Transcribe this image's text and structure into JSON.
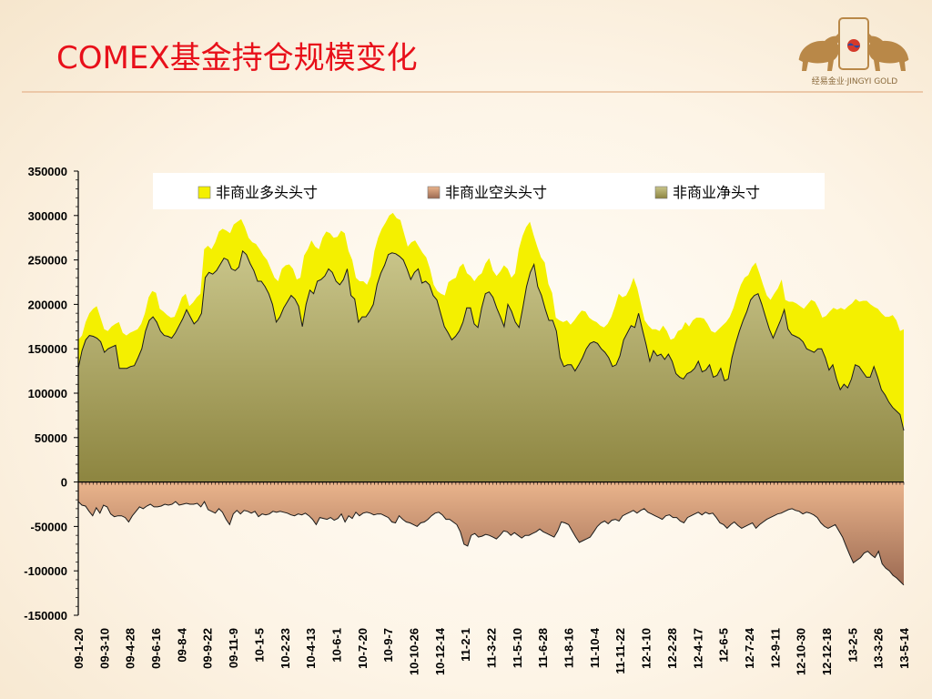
{
  "page": {
    "title": "COMEX基金持仓规模变化",
    "logo_text": "经易金业·JINGYI GOLD",
    "logo_seal": "經易"
  },
  "colors": {
    "title": "#e8101a",
    "long_fill": "#f4f000",
    "net_fill_top": "#bfbb7a",
    "net_fill_bottom": "#8d8540",
    "short_fill_top": "#e6ad84",
    "short_fill_bottom": "#a27058",
    "accent_rule": "#ecc8a8"
  },
  "chart_data": {
    "type": "area",
    "title": "",
    "xlabel": "",
    "ylabel": "",
    "ylim": [
      -150000,
      350000
    ],
    "yticks": [
      350000,
      300000,
      250000,
      200000,
      150000,
      100000,
      50000,
      0,
      -50000,
      -100000,
      -150000
    ],
    "ytick_labels": [
      "350000",
      "300000",
      "250000",
      "200000",
      "150000",
      "100000",
      "50000",
      "0",
      "-50000",
      "-100000",
      "-150000"
    ],
    "xtick_labels": [
      "09-1-20",
      "09-3-10",
      "09-4-28",
      "09-6-16",
      "09-8-4",
      "09-9-22",
      "09-11-9",
      "10-1-5",
      "10-2-23",
      "10-4-13",
      "10-6-1",
      "10-7-20",
      "10-9-7",
      "10-10-26",
      "10-12-14",
      "11-2-1",
      "11-3-22",
      "11-5-10",
      "11-6-28",
      "11-8-16",
      "11-10-4",
      "11-11-22",
      "12-1-10",
      "12-2-28",
      "12-4-17",
      "12-6-5",
      "12-7-24",
      "12-9-11",
      "12-10-30",
      "12-12-18",
      "13-2-5",
      "13-3-26",
      "13-5-14"
    ],
    "x_period": "weekly, 2009-01-20 to 2013-06-04",
    "grid": false,
    "legend_position": "top",
    "series": [
      {
        "name": "非商业多头头寸",
        "color": "#f4f000",
        "values": [
          160000,
          165000,
          180000,
          190000,
          195000,
          198000,
          185000,
          172000,
          170000,
          175000,
          178000,
          180000,
          168000,
          165000,
          168000,
          170000,
          172000,
          178000,
          190000,
          208000,
          215000,
          213000,
          195000,
          192000,
          188000,
          185000,
          186000,
          196000,
          208000,
          212000,
          198000,
          202000,
          208000,
          212000,
          262000,
          266000,
          262000,
          270000,
          282000,
          285000,
          283000,
          280000,
          290000,
          293000,
          296000,
          287000,
          275000,
          270000,
          268000,
          262000,
          255000,
          250000,
          240000,
          230000,
          226000,
          240000,
          244000,
          245000,
          240000,
          228000,
          230000,
          255000,
          262000,
          272000,
          265000,
          262000,
          275000,
          282000,
          280000,
          275000,
          276000,
          283000,
          280000,
          260000,
          250000,
          230000,
          226000,
          226000,
          222000,
          232000,
          260000,
          275000,
          285000,
          292000,
          300000,
          303000,
          297000,
          295000,
          280000,
          265000,
          270000,
          272000,
          265000,
          258000,
          253000,
          240000,
          222000,
          215000,
          212000,
          210000,
          225000,
          228000,
          230000,
          242000,
          246000,
          235000,
          232000,
          226000,
          232000,
          235000,
          246000,
          252000,
          238000,
          232000,
          237000,
          244000,
          240000,
          230000,
          235000,
          262000,
          277000,
          287000,
          293000,
          278000,
          265000,
          253000,
          247000,
          223000,
          213000,
          185000,
          182000,
          180000,
          182000,
          177000,
          182000,
          188000,
          193000,
          192000,
          185000,
          182000,
          180000,
          176000,
          174000,
          178000,
          186000,
          198000,
          212000,
          208000,
          210000,
          218000,
          230000,
          218000,
          200000,
          182000,
          176000,
          172000,
          172000,
          170000,
          176000,
          170000,
          160000,
          162000,
          170000,
          172000,
          180000,
          175000,
          182000,
          185000,
          185000,
          184000,
          178000,
          170000,
          168000,
          172000,
          176000,
          180000,
          186000,
          196000,
          210000,
          222000,
          230000,
          233000,
          242000,
          247000,
          235000,
          222000,
          210000,
          205000,
          212000,
          218000,
          228000,
          205000,
          203000,
          203000,
          201000,
          198000,
          195000,
          200000,
          205000,
          203000,
          195000,
          185000,
          187000,
          192000,
          196000,
          194000,
          196000,
          194000,
          198000,
          201000,
          206000,
          203000,
          204000,
          204000,
          200000,
          197000,
          195000,
          190000,
          186000,
          186000,
          188000,
          182000,
          170000,
          172000
        ]
      },
      {
        "name": "非商业空头头寸",
        "color": "#b98b6e",
        "values": [
          -22000,
          -26000,
          -27000,
          -33000,
          -38000,
          -29000,
          -35000,
          -26000,
          -28000,
          -36000,
          -39000,
          -38000,
          -38000,
          -40000,
          -45000,
          -38000,
          -33000,
          -28000,
          -30000,
          -27000,
          -25000,
          -28000,
          -28000,
          -27000,
          -25000,
          -26000,
          -25000,
          -22000,
          -26000,
          -25000,
          -24000,
          -25000,
          -25000,
          -24000,
          -28000,
          -22000,
          -31000,
          -33000,
          -35000,
          -30000,
          -34000,
          -42000,
          -48000,
          -36000,
          -32000,
          -36000,
          -32000,
          -33000,
          -35000,
          -33000,
          -39000,
          -36000,
          -37000,
          -36000,
          -33000,
          -34000,
          -33000,
          -34000,
          -35000,
          -37000,
          -38000,
          -36000,
          -37000,
          -35000,
          -38000,
          -42000,
          -48000,
          -40000,
          -41000,
          -42000,
          -40000,
          -43000,
          -41000,
          -36000,
          -45000,
          -38000,
          -41000,
          -34000,
          -38000,
          -35000,
          -34000,
          -35000,
          -37000,
          -36000,
          -36000,
          -38000,
          -40000,
          -45000,
          -46000,
          -38000,
          -42000,
          -45000,
          -46000,
          -48000,
          -50000,
          -46000,
          -45000,
          -42000,
          -38000,
          -35000,
          -34000,
          -37000,
          -42000,
          -42000,
          -45000,
          -48000,
          -56000,
          -70000,
          -72000,
          -60000,
          -58000,
          -62000,
          -61000,
          -59000,
          -60000,
          -62000,
          -64000,
          -60000,
          -55000,
          -56000,
          -60000,
          -57000,
          -60000,
          -63000,
          -60000,
          -60000,
          -58000,
          -56000,
          -53000,
          -56000,
          -58000,
          -60000,
          -62000,
          -55000,
          -45000,
          -46000,
          -48000,
          -55000,
          -62000,
          -68000,
          -66000,
          -64000,
          -62000,
          -56000,
          -50000,
          -46000,
          -44000,
          -47000,
          -43000,
          -42000,
          -44000,
          -38000,
          -36000,
          -34000,
          -32000,
          -35000,
          -32000,
          -30000,
          -34000,
          -36000,
          -38000,
          -40000,
          -42000,
          -38000,
          -37000,
          -40000,
          -40000,
          -44000,
          -46000,
          -40000,
          -38000,
          -36000,
          -34000,
          -37000,
          -34000,
          -36000,
          -35000,
          -40000,
          -46000,
          -48000,
          -52000,
          -48000,
          -45000,
          -49000,
          -52000,
          -50000,
          -48000,
          -46000,
          -52000,
          -48000,
          -45000,
          -42000,
          -40000,
          -38000,
          -36000,
          -35000,
          -33000,
          -31000,
          -30000,
          -32000,
          -33000,
          -36000,
          -34000,
          -35000,
          -37000,
          -40000,
          -46000,
          -50000,
          -52000,
          -50000,
          -48000,
          -55000,
          -62000,
          -72000,
          -82000,
          -91000,
          -88000,
          -85000,
          -80000,
          -78000,
          -82000,
          -85000,
          -78000,
          -92000,
          -97000,
          -100000,
          -105000,
          -108000,
          -112000,
          -116000
        ]
      },
      {
        "name": "非商业净头寸",
        "color": "#a8a25a",
        "values": [
          128000,
          148000,
          160000,
          165000,
          164000,
          162000,
          158000,
          146000,
          150000,
          152000,
          154000,
          128000,
          128000,
          128000,
          130000,
          131000,
          140000,
          150000,
          170000,
          182000,
          186000,
          180000,
          170000,
          165000,
          164000,
          162000,
          168000,
          176000,
          184000,
          194000,
          186000,
          178000,
          182000,
          190000,
          230000,
          236000,
          234000,
          238000,
          245000,
          252000,
          250000,
          240000,
          238000,
          242000,
          260000,
          256000,
          246000,
          238000,
          226000,
          226000,
          220000,
          212000,
          200000,
          180000,
          186000,
          196000,
          203000,
          210000,
          206000,
          198000,
          175000,
          200000,
          216000,
          212000,
          226000,
          228000,
          232000,
          240000,
          236000,
          226000,
          222000,
          228000,
          240000,
          210000,
          206000,
          180000,
          186000,
          186000,
          192000,
          200000,
          222000,
          235000,
          244000,
          256000,
          258000,
          257000,
          254000,
          250000,
          240000,
          228000,
          236000,
          240000,
          224000,
          226000,
          222000,
          210000,
          205000,
          190000,
          175000,
          168000,
          160000,
          164000,
          170000,
          180000,
          196000,
          196000,
          178000,
          174000,
          196000,
          212000,
          214000,
          208000,
          196000,
          186000,
          175000,
          200000,
          192000,
          180000,
          174000,
          196000,
          220000,
          236000,
          245000,
          220000,
          210000,
          195000,
          182000,
          182000,
          170000,
          140000,
          130000,
          132000,
          132000,
          125000,
          132000,
          140000,
          150000,
          156000,
          158000,
          156000,
          150000,
          146000,
          140000,
          130000,
          132000,
          142000,
          160000,
          168000,
          176000,
          174000,
          190000,
          172000,
          155000,
          136000,
          148000,
          142000,
          144000,
          138000,
          144000,
          136000,
          122000,
          118000,
          116000,
          122000,
          124000,
          128000,
          136000,
          124000,
          126000,
          132000,
          118000,
          120000,
          128000,
          114000,
          116000,
          140000,
          156000,
          170000,
          182000,
          192000,
          205000,
          210000,
          212000,
          200000,
          186000,
          172000,
          162000,
          172000,
          182000,
          194000,
          172000,
          166000,
          164000,
          162000,
          158000,
          150000,
          148000,
          146000,
          150000,
          150000,
          140000,
          126000,
          132000,
          116000,
          104000,
          110000,
          106000,
          116000,
          132000,
          130000,
          124000,
          118000,
          118000,
          130000,
          118000,
          104000,
          98000,
          90000,
          84000,
          80000,
          76000,
          58000
        ]
      }
    ]
  }
}
